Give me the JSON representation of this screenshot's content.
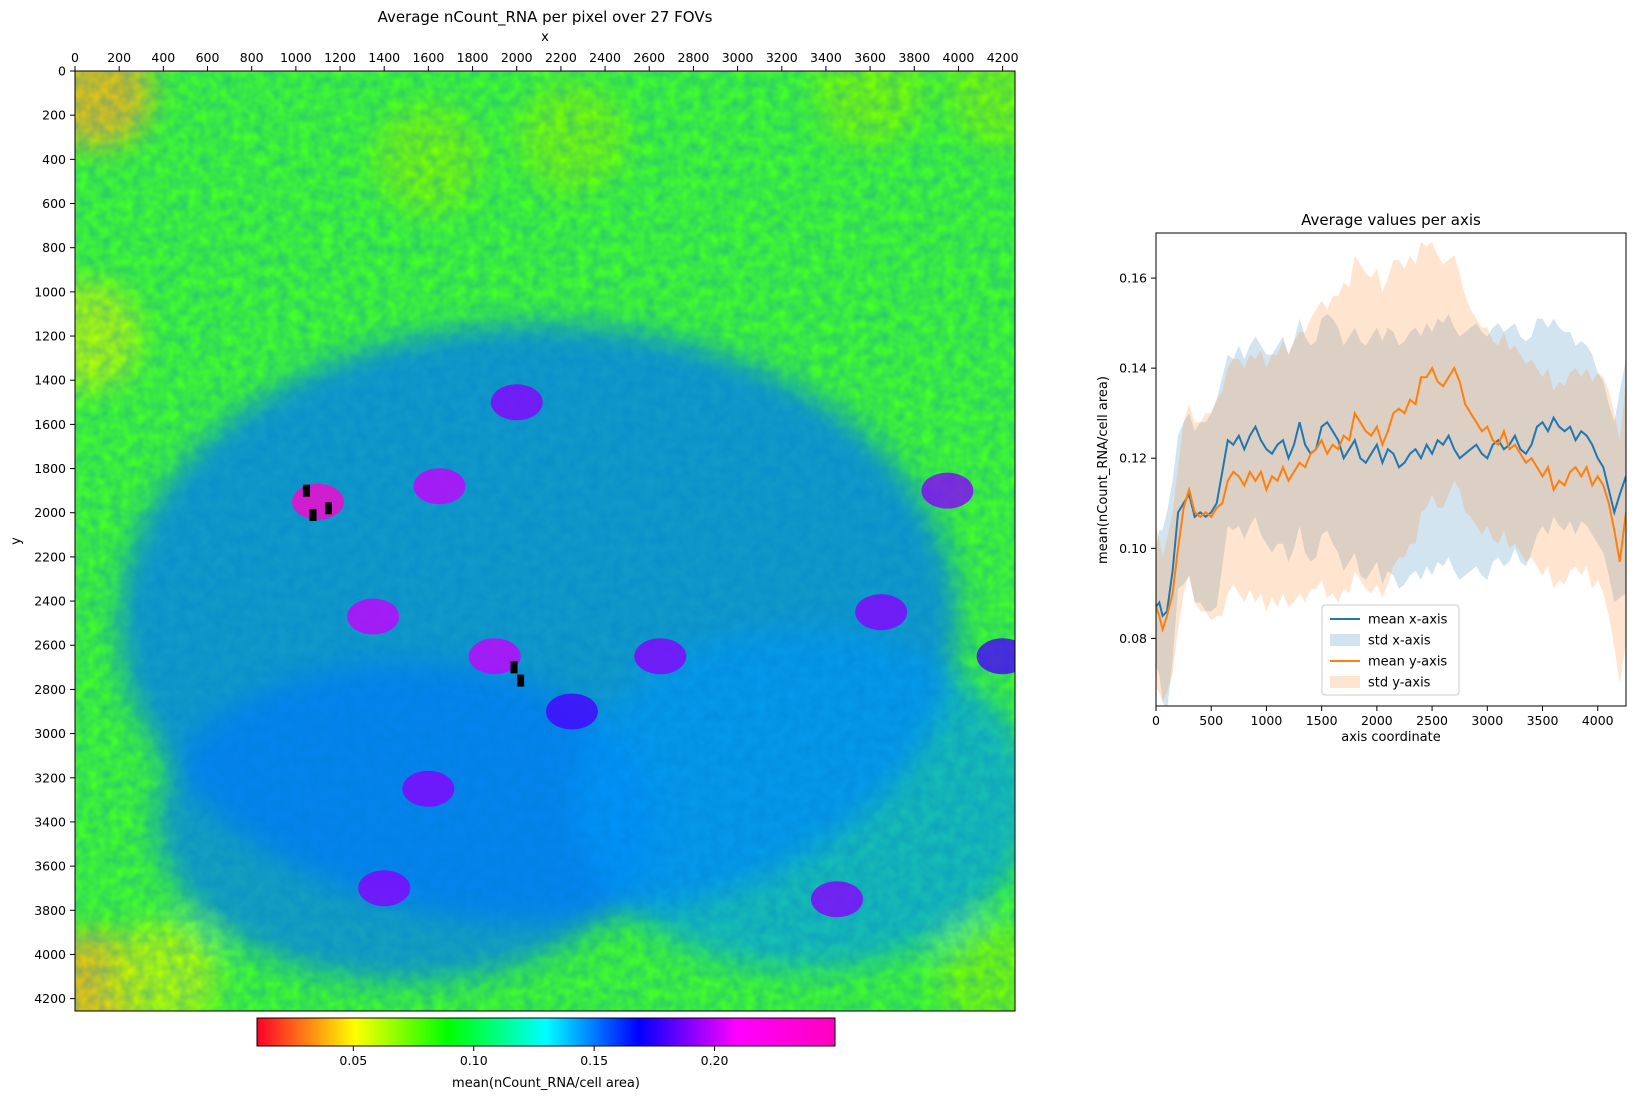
{
  "figure": {
    "heatmap_title": "Average nCount_RNA per pixel over 27 FOVs",
    "heatmap_xlabel": "x",
    "heatmap_ylabel": "y",
    "colorbar_label": "mean(nCount_RNA/cell area)",
    "line_title": "Average values per axis",
    "line_xlabel": "axis coordinate",
    "line_ylabel": "mean(nCount_RNA/cell area)"
  },
  "chart_data": [
    {
      "type": "heatmap",
      "title": "Average nCount_RNA per pixel over 27 FOVs",
      "xlabel": "x",
      "ylabel": "y",
      "xlim": [
        0,
        4256
      ],
      "ylim": [
        4256,
        0
      ],
      "x_ticks": [
        0,
        200,
        400,
        600,
        800,
        1000,
        1200,
        1400,
        1600,
        1800,
        2000,
        2200,
        2400,
        2600,
        2800,
        3000,
        3200,
        3400,
        3600,
        3800,
        4000,
        4200
      ],
      "y_ticks": [
        0,
        200,
        400,
        600,
        800,
        1000,
        1200,
        1400,
        1600,
        1800,
        2000,
        2200,
        2400,
        2600,
        2800,
        3000,
        3200,
        3400,
        3600,
        3800,
        4000,
        4200
      ],
      "colormap": "gist_rainbow_r",
      "color_range": [
        0.01,
        0.25
      ],
      "colorbar_ticks": [
        "0.05",
        "0.10",
        "0.15",
        "0.20"
      ],
      "colorbar_label": "mean(nCount_RNA/cell area)",
      "description_of_pattern": "edges yellow/green (low ~0.06-0.10), interior green-cyan (~0.11-0.15) with blue/magenta patches (~0.18-0.24), black missing pixels near (1100,1950) and (2000,2700)",
      "hot_spots": [
        {
          "x": 1100,
          "y": 1950,
          "value": 0.24
        },
        {
          "x": 1350,
          "y": 2470,
          "value": 0.2
        },
        {
          "x": 1900,
          "y": 2650,
          "value": 0.2
        },
        {
          "x": 2650,
          "y": 2650,
          "value": 0.19
        },
        {
          "x": 2000,
          "y": 1500,
          "value": 0.19
        },
        {
          "x": 1650,
          "y": 1880,
          "value": 0.2
        },
        {
          "x": 3650,
          "y": 2450,
          "value": 0.19
        },
        {
          "x": 3950,
          "y": 1900,
          "value": 0.19
        },
        {
          "x": 1600,
          "y": 3250,
          "value": 0.19
        },
        {
          "x": 1400,
          "y": 3700,
          "value": 0.19
        },
        {
          "x": 3450,
          "y": 3750,
          "value": 0.19
        },
        {
          "x": 2250,
          "y": 2900,
          "value": 0.18
        },
        {
          "x": 4200,
          "y": 2650,
          "value": 0.18
        }
      ],
      "cold_spots": [
        {
          "x": 100,
          "y": 100,
          "value": 0.04
        },
        {
          "x": 80,
          "y": 4150,
          "value": 0.04
        },
        {
          "x": 400,
          "y": 4100,
          "value": 0.06
        },
        {
          "x": 4150,
          "y": 4100,
          "value": 0.07
        },
        {
          "x": 4200,
          "y": 100,
          "value": 0.07
        },
        {
          "x": 50,
          "y": 1200,
          "value": 0.06
        },
        {
          "x": 1600,
          "y": 400,
          "value": 0.07
        },
        {
          "x": 2250,
          "y": 300,
          "value": 0.07
        },
        {
          "x": 3600,
          "y": 100,
          "value": 0.07
        }
      ]
    },
    {
      "type": "line",
      "title": "Average values per axis",
      "xlabel": "axis coordinate",
      "ylabel": "mean(nCount_RNA/cell area)",
      "xlim": [
        0,
        4256
      ],
      "ylim": [
        0.065,
        0.17
      ],
      "x_ticks": [
        0,
        500,
        1000,
        1500,
        2000,
        2500,
        3000,
        3500,
        4000
      ],
      "y_ticks": [
        0.08,
        0.1,
        0.12,
        0.14,
        0.16
      ],
      "legend_position": "lower center",
      "x": [
        0,
        30,
        60,
        100,
        150,
        200,
        250,
        300,
        350,
        400,
        450,
        500,
        550,
        600,
        650,
        700,
        750,
        800,
        850,
        900,
        950,
        1000,
        1050,
        1100,
        1150,
        1200,
        1250,
        1300,
        1350,
        1400,
        1450,
        1500,
        1550,
        1600,
        1650,
        1700,
        1750,
        1800,
        1850,
        1900,
        1950,
        2000,
        2050,
        2100,
        2150,
        2200,
        2250,
        2300,
        2350,
        2400,
        2450,
        2500,
        2550,
        2600,
        2650,
        2700,
        2750,
        2800,
        2850,
        2900,
        2950,
        3000,
        3050,
        3100,
        3150,
        3200,
        3250,
        3300,
        3350,
        3400,
        3450,
        3500,
        3550,
        3600,
        3650,
        3700,
        3750,
        3800,
        3850,
        3900,
        3950,
        4000,
        4050,
        4100,
        4150,
        4200,
        4256
      ],
      "series": [
        {
          "name": "mean x-axis",
          "color": "#1f77b4",
          "y": [
            0.087,
            0.088,
            0.085,
            0.086,
            0.095,
            0.108,
            0.11,
            0.112,
            0.107,
            0.108,
            0.107,
            0.108,
            0.11,
            0.117,
            0.124,
            0.123,
            0.125,
            0.122,
            0.125,
            0.127,
            0.124,
            0.122,
            0.121,
            0.123,
            0.124,
            0.12,
            0.123,
            0.128,
            0.123,
            0.121,
            0.122,
            0.127,
            0.128,
            0.126,
            0.124,
            0.12,
            0.122,
            0.124,
            0.12,
            0.119,
            0.121,
            0.123,
            0.119,
            0.122,
            0.121,
            0.118,
            0.119,
            0.121,
            0.122,
            0.12,
            0.123,
            0.121,
            0.124,
            0.123,
            0.125,
            0.122,
            0.12,
            0.121,
            0.122,
            0.123,
            0.121,
            0.12,
            0.123,
            0.124,
            0.122,
            0.123,
            0.125,
            0.122,
            0.121,
            0.123,
            0.127,
            0.128,
            0.126,
            0.129,
            0.127,
            0.126,
            0.127,
            0.124,
            0.126,
            0.125,
            0.123,
            0.12,
            0.118,
            0.113,
            0.108,
            0.112,
            0.116
          ],
          "std_upper": [
            0.1,
            0.104,
            0.104,
            0.108,
            0.115,
            0.125,
            0.128,
            0.13,
            0.126,
            0.128,
            0.128,
            0.13,
            0.133,
            0.138,
            0.143,
            0.142,
            0.145,
            0.142,
            0.145,
            0.147,
            0.145,
            0.143,
            0.143,
            0.145,
            0.147,
            0.143,
            0.146,
            0.151,
            0.147,
            0.145,
            0.146,
            0.151,
            0.152,
            0.151,
            0.149,
            0.145,
            0.147,
            0.149,
            0.146,
            0.145,
            0.147,
            0.149,
            0.146,
            0.149,
            0.148,
            0.145,
            0.146,
            0.148,
            0.149,
            0.147,
            0.15,
            0.148,
            0.151,
            0.15,
            0.152,
            0.149,
            0.147,
            0.148,
            0.149,
            0.15,
            0.148,
            0.147,
            0.149,
            0.15,
            0.148,
            0.149,
            0.15,
            0.147,
            0.146,
            0.147,
            0.151,
            0.151,
            0.149,
            0.151,
            0.149,
            0.148,
            0.148,
            0.145,
            0.146,
            0.145,
            0.143,
            0.139,
            0.137,
            0.132,
            0.128,
            0.135,
            0.142
          ],
          "std_lower": [
            0.074,
            0.072,
            0.066,
            0.064,
            0.075,
            0.091,
            0.092,
            0.094,
            0.088,
            0.088,
            0.086,
            0.086,
            0.087,
            0.096,
            0.105,
            0.104,
            0.105,
            0.102,
            0.105,
            0.107,
            0.103,
            0.101,
            0.099,
            0.101,
            0.101,
            0.097,
            0.1,
            0.105,
            0.099,
            0.097,
            0.098,
            0.103,
            0.104,
            0.101,
            0.099,
            0.095,
            0.097,
            0.099,
            0.094,
            0.093,
            0.095,
            0.097,
            0.092,
            0.095,
            0.094,
            0.091,
            0.092,
            0.094,
            0.095,
            0.093,
            0.096,
            0.094,
            0.097,
            0.096,
            0.098,
            0.095,
            0.093,
            0.094,
            0.095,
            0.096,
            0.094,
            0.093,
            0.097,
            0.098,
            0.096,
            0.097,
            0.1,
            0.097,
            0.096,
            0.099,
            0.103,
            0.105,
            0.103,
            0.107,
            0.105,
            0.104,
            0.106,
            0.103,
            0.106,
            0.105,
            0.103,
            0.101,
            0.099,
            0.094,
            0.088,
            0.089,
            0.09
          ]
        },
        {
          "name": "mean y-axis",
          "color": "#ff7f0e",
          "y": [
            0.087,
            0.085,
            0.082,
            0.085,
            0.09,
            0.1,
            0.109,
            0.113,
            0.108,
            0.107,
            0.108,
            0.107,
            0.109,
            0.11,
            0.115,
            0.117,
            0.116,
            0.114,
            0.117,
            0.115,
            0.117,
            0.113,
            0.116,
            0.115,
            0.118,
            0.115,
            0.117,
            0.119,
            0.118,
            0.121,
            0.122,
            0.124,
            0.121,
            0.123,
            0.122,
            0.125,
            0.124,
            0.13,
            0.128,
            0.126,
            0.125,
            0.127,
            0.123,
            0.126,
            0.13,
            0.131,
            0.13,
            0.133,
            0.132,
            0.138,
            0.138,
            0.14,
            0.137,
            0.136,
            0.138,
            0.14,
            0.137,
            0.132,
            0.13,
            0.128,
            0.126,
            0.127,
            0.124,
            0.123,
            0.126,
            0.122,
            0.123,
            0.121,
            0.119,
            0.12,
            0.118,
            0.116,
            0.118,
            0.113,
            0.115,
            0.114,
            0.117,
            0.118,
            0.116,
            0.118,
            0.114,
            0.116,
            0.114,
            0.11,
            0.104,
            0.097,
            0.108
          ]
        }
      ],
      "y_axis_std": {
        "name": "std y-axis",
        "color": "#ff7f0e",
        "std_upper": [
          0.105,
          0.102,
          0.098,
          0.102,
          0.108,
          0.118,
          0.128,
          0.132,
          0.128,
          0.128,
          0.13,
          0.13,
          0.133,
          0.135,
          0.14,
          0.142,
          0.142,
          0.14,
          0.143,
          0.142,
          0.144,
          0.14,
          0.143,
          0.143,
          0.146,
          0.143,
          0.146,
          0.148,
          0.148,
          0.151,
          0.153,
          0.155,
          0.153,
          0.156,
          0.156,
          0.159,
          0.158,
          0.165,
          0.163,
          0.161,
          0.16,
          0.162,
          0.157,
          0.16,
          0.164,
          0.164,
          0.162,
          0.165,
          0.163,
          0.168,
          0.167,
          0.168,
          0.165,
          0.163,
          0.164,
          0.165,
          0.161,
          0.156,
          0.153,
          0.151,
          0.149,
          0.149,
          0.146,
          0.145,
          0.148,
          0.144,
          0.145,
          0.143,
          0.141,
          0.142,
          0.14,
          0.138,
          0.14,
          0.135,
          0.137,
          0.136,
          0.139,
          0.14,
          0.138,
          0.14,
          0.137,
          0.139,
          0.138,
          0.135,
          0.13,
          0.124,
          0.137
        ],
        "std_lower": [
          0.069,
          0.068,
          0.066,
          0.068,
          0.072,
          0.082,
          0.09,
          0.094,
          0.088,
          0.086,
          0.086,
          0.084,
          0.085,
          0.085,
          0.09,
          0.092,
          0.09,
          0.088,
          0.091,
          0.088,
          0.09,
          0.086,
          0.089,
          0.087,
          0.09,
          0.087,
          0.088,
          0.09,
          0.088,
          0.091,
          0.091,
          0.093,
          0.089,
          0.09,
          0.088,
          0.091,
          0.09,
          0.095,
          0.093,
          0.091,
          0.09,
          0.092,
          0.089,
          0.092,
          0.096,
          0.098,
          0.098,
          0.101,
          0.101,
          0.108,
          0.109,
          0.112,
          0.109,
          0.109,
          0.112,
          0.115,
          0.113,
          0.108,
          0.107,
          0.105,
          0.103,
          0.105,
          0.102,
          0.101,
          0.104,
          0.1,
          0.101,
          0.099,
          0.097,
          0.098,
          0.096,
          0.094,
          0.096,
          0.091,
          0.093,
          0.092,
          0.095,
          0.096,
          0.094,
          0.096,
          0.091,
          0.093,
          0.09,
          0.085,
          0.078,
          0.07,
          0.079
        ]
      },
      "legend": [
        "mean x-axis",
        "std x-axis",
        "mean y-axis",
        "std y-axis"
      ]
    }
  ]
}
